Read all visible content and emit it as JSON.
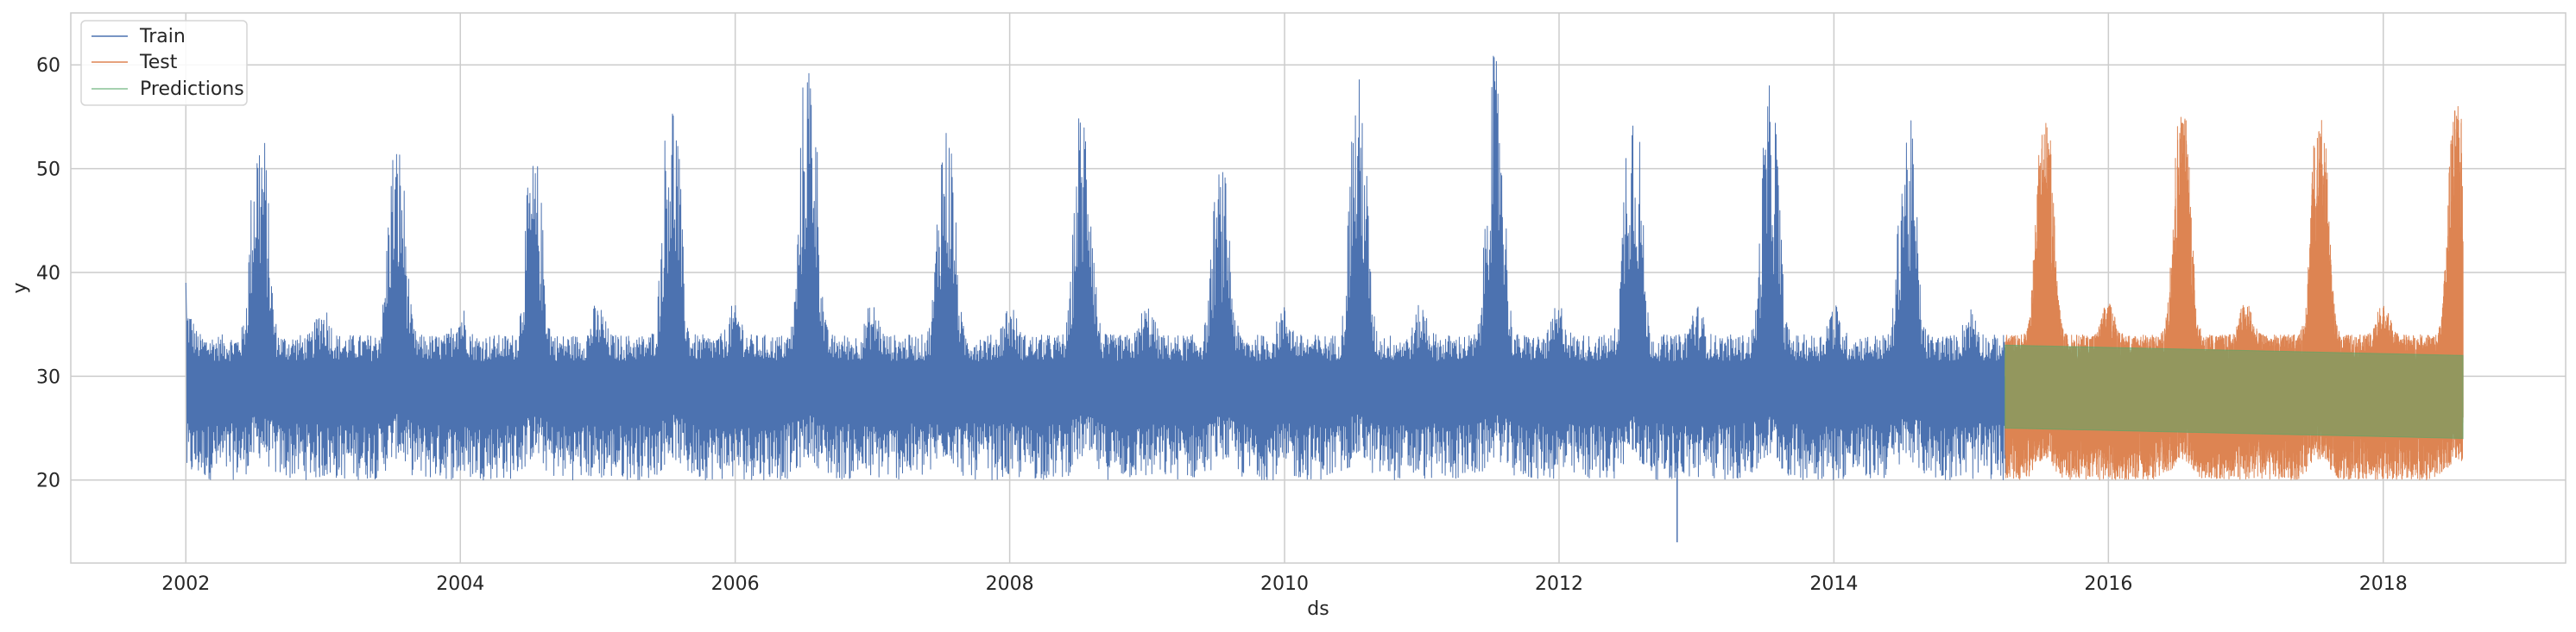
{
  "chart_data": {
    "type": "line",
    "xlabel": "ds",
    "ylabel": "y",
    "xlim": [
      "2001-03-01",
      "2019-05-01"
    ],
    "ylim": [
      12,
      65
    ],
    "x_ticks": [
      "2002",
      "2004",
      "2006",
      "2008",
      "2010",
      "2012",
      "2014",
      "2016",
      "2018"
    ],
    "y_ticks": [
      20,
      30,
      40,
      50,
      60
    ],
    "grid": true,
    "legend": "top-left",
    "series": [
      {
        "name": "Train",
        "color": "#4c72b0",
        "x_range": [
          "2002-01-01",
          "2015-04-01"
        ],
        "baseline": 30,
        "seasonal_peaks": [
          {
            "date": "2002-07-15",
            "value": 55
          },
          {
            "date": "2003-07-15",
            "value": 53
          },
          {
            "date": "2004-07-15",
            "value": 51
          },
          {
            "date": "2005-07-15",
            "value": 58
          },
          {
            "date": "2006-07-15",
            "value": 62
          },
          {
            "date": "2007-07-15",
            "value": 55
          },
          {
            "date": "2008-07-15",
            "value": 57
          },
          {
            "date": "2009-07-15",
            "value": 50
          },
          {
            "date": "2010-07-15",
            "value": 59
          },
          {
            "date": "2011-07-15",
            "value": 61
          },
          {
            "date": "2012-07-15",
            "value": 59
          },
          {
            "date": "2013-07-15",
            "value": 58
          },
          {
            "date": "2014-07-15",
            "value": 55
          }
        ],
        "min": 14,
        "min_date": "2012-11-10",
        "start_value": 39
      },
      {
        "name": "Test",
        "color": "#dd8452",
        "x_range": [
          "2015-04-01",
          "2018-08-01"
        ],
        "baseline": 30,
        "seasonal_peaks": [
          {
            "date": "2015-07-15",
            "value": 55
          },
          {
            "date": "2016-07-15",
            "value": 56
          },
          {
            "date": "2017-07-15",
            "value": 55
          },
          {
            "date": "2018-07-15",
            "value": 56
          }
        ]
      },
      {
        "name": "Predictions",
        "color": "#55a868",
        "x_range": [
          "2015-04-01",
          "2018-08-01"
        ],
        "upper": [
          33,
          32
        ],
        "lower": [
          25,
          24
        ]
      }
    ]
  }
}
